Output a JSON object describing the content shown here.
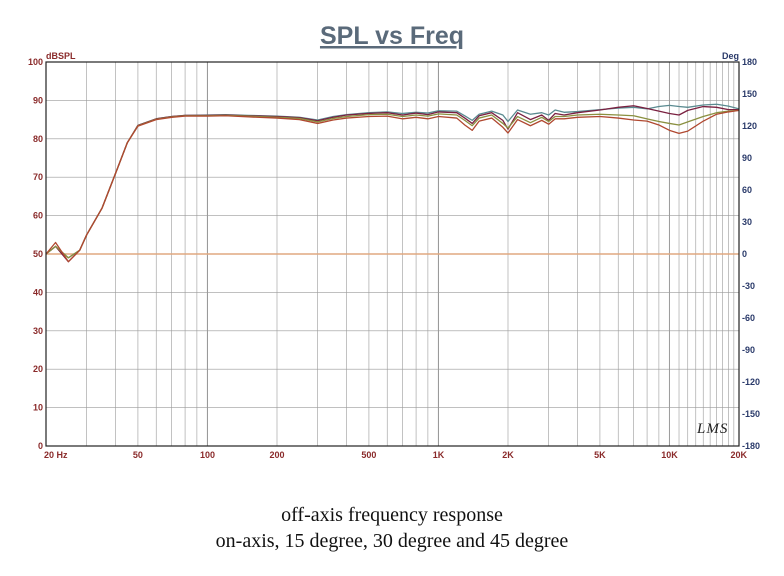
{
  "chart_data": {
    "type": "line",
    "title": "SPL vs Freq",
    "ylabel_left": "dBSPL",
    "ylabel_right": "Deg",
    "x_scale": "log",
    "xlim": [
      20,
      20000
    ],
    "ylim_left": [
      0,
      100
    ],
    "ylim_right": [
      -180,
      180
    ],
    "grid": true,
    "x_tick_labels": [
      {
        "value": 20,
        "label": "20 Hz"
      },
      {
        "value": 50,
        "label": "50"
      },
      {
        "value": 100,
        "label": "100"
      },
      {
        "value": 200,
        "label": "200"
      },
      {
        "value": 500,
        "label": "500"
      },
      {
        "value": 1000,
        "label": "1K"
      },
      {
        "value": 2000,
        "label": "2K"
      },
      {
        "value": 5000,
        "label": "5K"
      },
      {
        "value": 10000,
        "label": "10K"
      },
      {
        "value": 20000,
        "label": "20K"
      }
    ],
    "y_left_ticks": [
      0,
      10,
      20,
      30,
      40,
      50,
      60,
      70,
      80,
      90,
      100
    ],
    "y_right_ticks": [
      -180,
      -150,
      -120,
      -90,
      -60,
      -30,
      0,
      30,
      60,
      90,
      120,
      150,
      180
    ],
    "phase_reference": {
      "name": "phase",
      "value_deg": 0,
      "color": "#e0a880"
    },
    "series": [
      {
        "name": "on-axis",
        "color": "#5a8a90",
        "points": [
          [
            20,
            50
          ],
          [
            22,
            52
          ],
          [
            25,
            49
          ],
          [
            28,
            51
          ],
          [
            30,
            55
          ],
          [
            35,
            62
          ],
          [
            40,
            71
          ],
          [
            45,
            79
          ],
          [
            50,
            83.5
          ],
          [
            60,
            85.2
          ],
          [
            70,
            85.8
          ],
          [
            80,
            86.1
          ],
          [
            100,
            86.2
          ],
          [
            120,
            86.3
          ],
          [
            150,
            86.1
          ],
          [
            200,
            85.9
          ],
          [
            250,
            85.6
          ],
          [
            300,
            84.9
          ],
          [
            350,
            85.8
          ],
          [
            400,
            86.3
          ],
          [
            500,
            86.8
          ],
          [
            600,
            87.0
          ],
          [
            700,
            86.6
          ],
          [
            800,
            86.9
          ],
          [
            900,
            86.7
          ],
          [
            1000,
            87.3
          ],
          [
            1200,
            87.2
          ],
          [
            1300,
            86.0
          ],
          [
            1400,
            84.8
          ],
          [
            1500,
            86.4
          ],
          [
            1700,
            87.2
          ],
          [
            1900,
            86.2
          ],
          [
            2000,
            84.5
          ],
          [
            2200,
            87.5
          ],
          [
            2500,
            86.4
          ],
          [
            2800,
            86.8
          ],
          [
            3000,
            86.2
          ],
          [
            3200,
            87.5
          ],
          [
            3500,
            86.9
          ],
          [
            4000,
            87.1
          ],
          [
            5000,
            87.6
          ],
          [
            6000,
            88.0
          ],
          [
            7000,
            88.2
          ],
          [
            8000,
            87.8
          ],
          [
            9000,
            88.4
          ],
          [
            10000,
            88.7
          ],
          [
            11000,
            88.4
          ],
          [
            12000,
            88.2
          ],
          [
            14000,
            88.8
          ],
          [
            16000,
            89.0
          ],
          [
            18000,
            88.5
          ],
          [
            20000,
            87.8
          ]
        ]
      },
      {
        "name": "15 degree",
        "color": "#7a2040",
        "points": [
          [
            20,
            50
          ],
          [
            22,
            52
          ],
          [
            25,
            48
          ],
          [
            28,
            51
          ],
          [
            30,
            55
          ],
          [
            35,
            62
          ],
          [
            40,
            71
          ],
          [
            45,
            79
          ],
          [
            50,
            83.5
          ],
          [
            60,
            85.2
          ],
          [
            70,
            85.8
          ],
          [
            80,
            86.1
          ],
          [
            100,
            86.1
          ],
          [
            120,
            86.2
          ],
          [
            150,
            86.0
          ],
          [
            200,
            85.8
          ],
          [
            250,
            85.5
          ],
          [
            300,
            84.7
          ],
          [
            350,
            85.6
          ],
          [
            400,
            86.2
          ],
          [
            500,
            86.6
          ],
          [
            600,
            86.8
          ],
          [
            700,
            86.2
          ],
          [
            800,
            86.7
          ],
          [
            900,
            86.3
          ],
          [
            1000,
            87.0
          ],
          [
            1200,
            86.8
          ],
          [
            1300,
            85.4
          ],
          [
            1400,
            84.0
          ],
          [
            1500,
            86.0
          ],
          [
            1700,
            86.8
          ],
          [
            1900,
            84.8
          ],
          [
            2000,
            82.5
          ],
          [
            2200,
            86.8
          ],
          [
            2500,
            85.0
          ],
          [
            2800,
            86.2
          ],
          [
            3000,
            84.8
          ],
          [
            3200,
            86.6
          ],
          [
            3500,
            86.2
          ],
          [
            4000,
            86.8
          ],
          [
            5000,
            87.5
          ],
          [
            6000,
            88.2
          ],
          [
            7000,
            88.6
          ],
          [
            8000,
            87.9
          ],
          [
            9000,
            87.2
          ],
          [
            10000,
            86.6
          ],
          [
            11000,
            86.2
          ],
          [
            12000,
            87.4
          ],
          [
            14000,
            88.4
          ],
          [
            16000,
            88.2
          ],
          [
            18000,
            87.6
          ],
          [
            20000,
            87.6
          ]
        ]
      },
      {
        "name": "30 degree",
        "color": "#8a9040",
        "points": [
          [
            20,
            50
          ],
          [
            22,
            52
          ],
          [
            25,
            49
          ],
          [
            28,
            51
          ],
          [
            30,
            55
          ],
          [
            35,
            62
          ],
          [
            40,
            71
          ],
          [
            45,
            79
          ],
          [
            50,
            83.4
          ],
          [
            60,
            85.1
          ],
          [
            70,
            85.7
          ],
          [
            80,
            86.0
          ],
          [
            100,
            86.0
          ],
          [
            120,
            86.1
          ],
          [
            150,
            85.9
          ],
          [
            200,
            85.6
          ],
          [
            250,
            85.3
          ],
          [
            300,
            84.4
          ],
          [
            350,
            85.3
          ],
          [
            400,
            85.8
          ],
          [
            500,
            86.3
          ],
          [
            600,
            86.4
          ],
          [
            700,
            85.8
          ],
          [
            800,
            86.2
          ],
          [
            900,
            85.9
          ],
          [
            1000,
            86.5
          ],
          [
            1200,
            86.2
          ],
          [
            1300,
            84.8
          ],
          [
            1400,
            83.4
          ],
          [
            1500,
            85.4
          ],
          [
            1700,
            86.2
          ],
          [
            1900,
            84.0
          ],
          [
            2000,
            82.8
          ],
          [
            2200,
            85.8
          ],
          [
            2500,
            84.2
          ],
          [
            2800,
            85.6
          ],
          [
            3000,
            84.5
          ],
          [
            3200,
            85.8
          ],
          [
            3500,
            85.8
          ],
          [
            4000,
            86.2
          ],
          [
            5000,
            86.4
          ],
          [
            6000,
            86.2
          ],
          [
            7000,
            86.0
          ],
          [
            8000,
            85.2
          ],
          [
            9000,
            84.5
          ],
          [
            10000,
            84.0
          ],
          [
            11000,
            83.6
          ],
          [
            12000,
            84.4
          ],
          [
            14000,
            85.8
          ],
          [
            16000,
            86.8
          ],
          [
            18000,
            87.2
          ],
          [
            20000,
            87.4
          ]
        ]
      },
      {
        "name": "45 degree",
        "color": "#b04830",
        "points": [
          [
            20,
            50
          ],
          [
            22,
            53
          ],
          [
            25,
            48
          ],
          [
            28,
            51
          ],
          [
            30,
            55
          ],
          [
            35,
            62
          ],
          [
            40,
            71
          ],
          [
            45,
            79
          ],
          [
            50,
            83.3
          ],
          [
            60,
            85.0
          ],
          [
            70,
            85.6
          ],
          [
            80,
            85.9
          ],
          [
            100,
            85.9
          ],
          [
            120,
            86.0
          ],
          [
            150,
            85.7
          ],
          [
            200,
            85.4
          ],
          [
            250,
            85.0
          ],
          [
            300,
            84.0
          ],
          [
            350,
            84.9
          ],
          [
            400,
            85.4
          ],
          [
            500,
            85.8
          ],
          [
            600,
            85.9
          ],
          [
            700,
            85.2
          ],
          [
            800,
            85.6
          ],
          [
            900,
            85.2
          ],
          [
            1000,
            85.8
          ],
          [
            1200,
            85.4
          ],
          [
            1300,
            83.6
          ],
          [
            1400,
            82.2
          ],
          [
            1500,
            84.6
          ],
          [
            1700,
            85.4
          ],
          [
            1900,
            83.0
          ],
          [
            2000,
            81.5
          ],
          [
            2200,
            85.0
          ],
          [
            2500,
            83.4
          ],
          [
            2800,
            84.8
          ],
          [
            3000,
            83.8
          ],
          [
            3200,
            85.2
          ],
          [
            3500,
            85.2
          ],
          [
            4000,
            85.6
          ],
          [
            5000,
            85.8
          ],
          [
            6000,
            85.4
          ],
          [
            7000,
            84.9
          ],
          [
            8000,
            84.6
          ],
          [
            9000,
            83.6
          ],
          [
            10000,
            82.2
          ],
          [
            11000,
            81.4
          ],
          [
            12000,
            82.0
          ],
          [
            14000,
            84.6
          ],
          [
            16000,
            86.4
          ],
          [
            18000,
            87.0
          ],
          [
            20000,
            87.4
          ]
        ]
      }
    ]
  },
  "caption": {
    "line1": "off-axis frequency response",
    "line2": "on-axis, 15 degree, 30 degree and 45 degree"
  },
  "watermark": "LMS",
  "colors": {
    "title": "#5a6a7a",
    "left_axis_text": "#8a2a2a",
    "right_axis_text": "#2a3a6a",
    "bottom_axis_text": "#8a2a2a",
    "grid": "#9a9a9a",
    "frame": "#222222"
  }
}
